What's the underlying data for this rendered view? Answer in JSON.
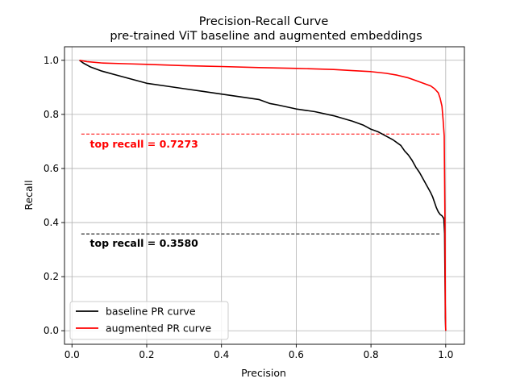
{
  "chart_data": {
    "type": "line",
    "title": "Precision-Recall Curve",
    "subtitle": "pre-trained ViT baseline and augmented embeddings",
    "xlabel": "Precision",
    "ylabel": "Recall",
    "xlim": [
      -0.02,
      1.05
    ],
    "ylim": [
      -0.05,
      1.05
    ],
    "grid": true,
    "legend_position": "lower-left",
    "x_ticks": [
      0.0,
      0.2,
      0.4,
      0.6,
      0.8,
      1.0
    ],
    "x_tick_labels": [
      "0.0",
      "0.2",
      "0.4",
      "0.6",
      "0.8",
      "1.0"
    ],
    "y_ticks": [
      0.0,
      0.2,
      0.4,
      0.6,
      0.8,
      1.0
    ],
    "y_tick_labels": [
      "0.0",
      "0.2",
      "0.4",
      "0.6",
      "0.8",
      "1.0"
    ],
    "series": [
      {
        "name": "baseline PR curve",
        "color": "#000000",
        "x": [
          0.02,
          0.03,
          0.05,
          0.08,
          0.12,
          0.16,
          0.2,
          0.25,
          0.3,
          0.35,
          0.4,
          0.45,
          0.5,
          0.53,
          0.55,
          0.6,
          0.65,
          0.7,
          0.75,
          0.78,
          0.8,
          0.82,
          0.84,
          0.86,
          0.88,
          0.89,
          0.9,
          0.91,
          0.92,
          0.93,
          0.94,
          0.95,
          0.96,
          0.965,
          0.97,
          0.975,
          0.98,
          0.985,
          0.99,
          0.995,
          0.997,
          0.998,
          0.999,
          1.0
        ],
        "y": [
          1.0,
          0.99,
          0.975,
          0.96,
          0.945,
          0.93,
          0.915,
          0.905,
          0.895,
          0.885,
          0.875,
          0.865,
          0.855,
          0.84,
          0.835,
          0.82,
          0.81,
          0.795,
          0.775,
          0.76,
          0.745,
          0.735,
          0.72,
          0.705,
          0.685,
          0.665,
          0.65,
          0.63,
          0.605,
          0.585,
          0.56,
          0.535,
          0.51,
          0.495,
          0.475,
          0.455,
          0.44,
          0.43,
          0.425,
          0.415,
          0.36,
          0.2,
          0.05,
          0.0
        ]
      },
      {
        "name": "augmented PR curve",
        "color": "#ff0000",
        "x": [
          0.02,
          0.04,
          0.08,
          0.15,
          0.2,
          0.3,
          0.4,
          0.5,
          0.6,
          0.7,
          0.75,
          0.8,
          0.84,
          0.87,
          0.9,
          0.92,
          0.94,
          0.96,
          0.97,
          0.98,
          0.985,
          0.99,
          0.993,
          0.996,
          0.998,
          0.999,
          1.0
        ],
        "y": [
          1.0,
          0.995,
          0.99,
          0.987,
          0.985,
          0.98,
          0.977,
          0.973,
          0.97,
          0.966,
          0.962,
          0.958,
          0.952,
          0.945,
          0.935,
          0.925,
          0.915,
          0.905,
          0.895,
          0.88,
          0.86,
          0.83,
          0.78,
          0.72,
          0.4,
          0.1,
          0.0
        ]
      }
    ],
    "reference_lines": [
      {
        "y": 0.7273,
        "x_from": 0.025,
        "x_to": 0.985,
        "color": "#ff0000",
        "style": "dashed",
        "label": "top recall = 0.7273",
        "label_x": 0.048,
        "label_y": 0.678
      },
      {
        "y": 0.358,
        "x_from": 0.025,
        "x_to": 0.985,
        "color": "#000000",
        "style": "dashed",
        "label": "top recall = 0.3580",
        "label_x": 0.048,
        "label_y": 0.31
      }
    ]
  }
}
